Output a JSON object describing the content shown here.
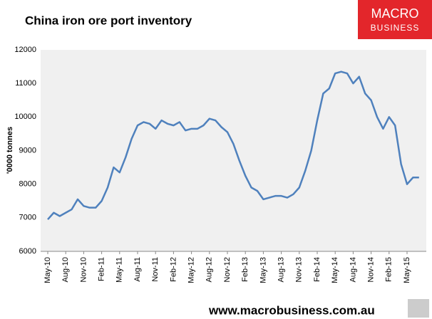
{
  "chart_data": {
    "type": "line",
    "title": "China iron ore port inventory",
    "y_label": "'0000 tonnes",
    "brand": [
      "MACRO",
      "BUSINESS"
    ],
    "footer": "www.macrobusiness.com.au",
    "categories": [
      "May-10",
      null,
      null,
      "Aug-10",
      null,
      null,
      "Nov-10",
      null,
      null,
      "Feb-11",
      null,
      null,
      "May-11",
      null,
      null,
      "Aug-11",
      null,
      null,
      "Nov-11",
      null,
      null,
      "Feb-12",
      null,
      null,
      "May-12",
      null,
      null,
      "Aug-12",
      null,
      null,
      "Nov-12",
      null,
      null,
      "Feb-13",
      null,
      null,
      "May-13",
      null,
      null,
      "Aug-13",
      null,
      null,
      "Nov-13",
      null,
      null,
      "Feb-14",
      null,
      null,
      "May-14",
      null,
      null,
      "Aug-14",
      null,
      null,
      "Nov-14",
      null,
      null,
      "Feb-15",
      null,
      null,
      "May-15",
      null,
      null
    ],
    "series": [
      {
        "name": "China iron ore port inventory",
        "color": "#4f81bd",
        "values": [
          6950,
          7150,
          7050,
          7150,
          7250,
          7550,
          7350,
          7300,
          7300,
          7500,
          7900,
          8500,
          8350,
          8800,
          9350,
          9750,
          9850,
          9800,
          9650,
          9900,
          9800,
          9750,
          9850,
          9600,
          9650,
          9650,
          9750,
          9950,
          9900,
          9700,
          9550,
          9200,
          8700,
          8250,
          7900,
          7800,
          7550,
          7600,
          7650,
          7650,
          7600,
          7700,
          7900,
          8400,
          9000,
          9900,
          10700,
          10850,
          11300,
          11350,
          11300,
          11000,
          11200,
          10700,
          10500,
          10000,
          9650,
          10000,
          9750,
          8600,
          8000,
          8200,
          8200
        ]
      }
    ],
    "ylim": [
      6000,
      12000
    ],
    "yticks": [
      6000,
      7000,
      8000,
      9000,
      10000,
      11000,
      12000
    ],
    "grid": false
  }
}
